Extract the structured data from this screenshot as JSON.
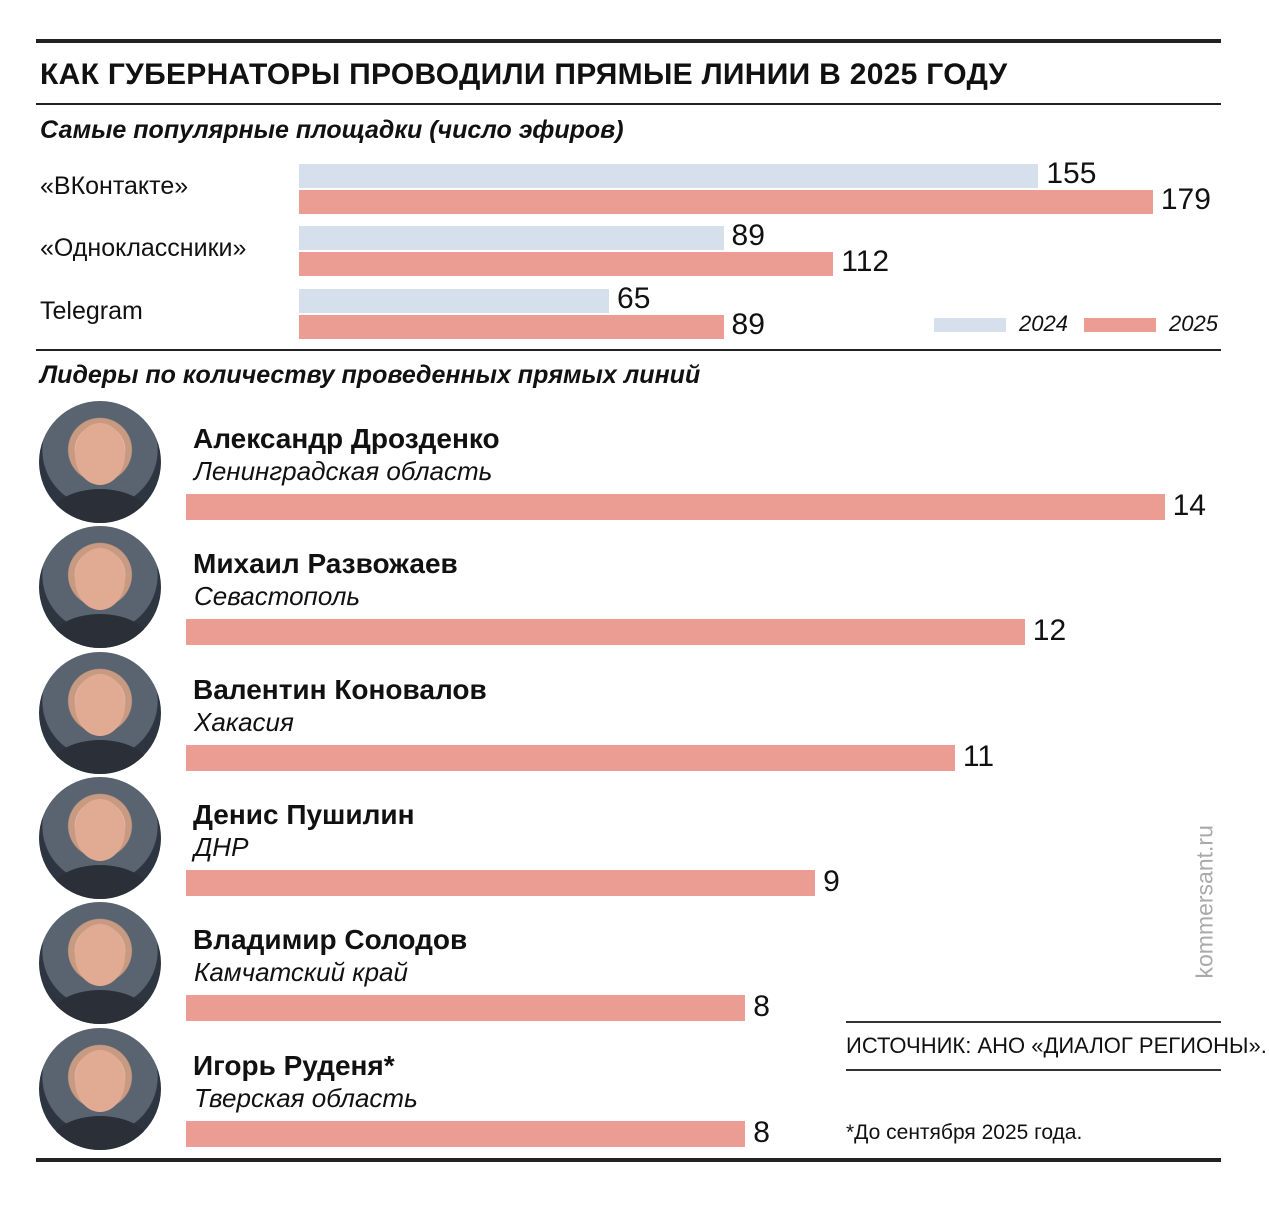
{
  "title": "КАК ГУБЕРНАТОРЫ ПРОВОДИЛИ ПРЯМЫЕ ЛИНИИ В 2025 ГОДУ",
  "colors": {
    "2024": "#d5e0ec",
    "2025": "#ec9d93"
  },
  "chart_data": [
    {
      "type": "bar",
      "orientation": "horizontal",
      "title": "Самые популярные площадки (число эфиров)",
      "categories": [
        "«ВКонтакте»",
        "«Одноклассники»",
        "Telegram"
      ],
      "series": [
        {
          "name": "2024",
          "values": [
            155,
            89,
            65
          ]
        },
        {
          "name": "2025",
          "values": [
            179,
            112,
            89
          ]
        }
      ],
      "legend": "bottom-right",
      "grid": false
    },
    {
      "type": "bar",
      "orientation": "horizontal",
      "title": "Лидеры по количеству проведенных прямых линий",
      "items": [
        {
          "name": "Александр Дрозденко",
          "region": "Ленинградская область",
          "value": 14
        },
        {
          "name": "Михаил Развожаев",
          "region": "Севастополь",
          "value": 12
        },
        {
          "name": "Валентин Коновалов",
          "region": "Хакасия",
          "value": 11
        },
        {
          "name": "Денис Пушилин",
          "region": "ДНР",
          "value": 9
        },
        {
          "name": "Владимир Солодов",
          "region": "Камчатский край",
          "value": 8
        },
        {
          "name": "Игорь Руденя*",
          "region": "Тверская область",
          "value": 8
        }
      ],
      "grid": false
    }
  ],
  "source": "ИСТОЧНИК: АНО «ДИАЛОГ РЕГИОНЫ».",
  "footnote": "*До сентября 2025 года.",
  "watermark": "kommersant.ru"
}
